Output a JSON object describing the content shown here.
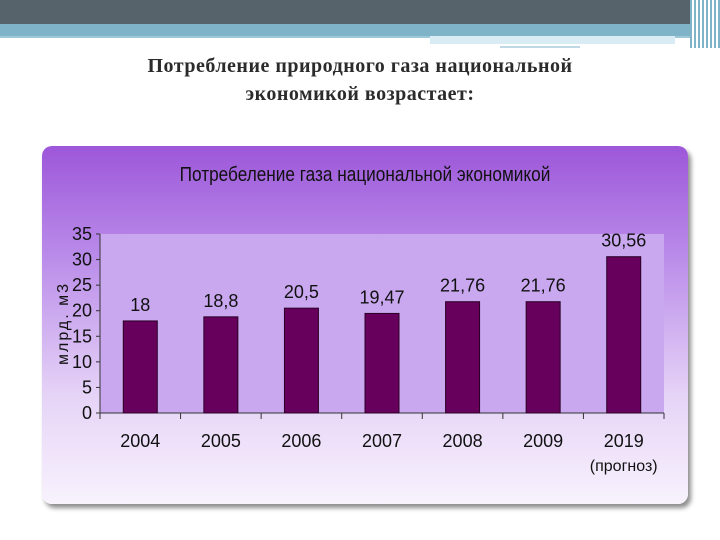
{
  "slide": {
    "title_line1": "Потребление природного газа национальной",
    "title_line2": "экономикой возрастает:"
  },
  "colors": {
    "banner_dark": "#56636b",
    "banner_teal": "#7fb3c8",
    "bar": "#66005c",
    "plot_bg": "#c9a8f0"
  },
  "chart_data": {
    "type": "bar",
    "title": "Потребеление газа национальной экономикой",
    "ylabel": "млрд. м3",
    "xlabel": "",
    "categories": [
      "2004",
      "2005",
      "2006",
      "2007",
      "2008",
      "2009",
      "2019"
    ],
    "sublabels": [
      "",
      "",
      "",
      "",
      "",
      "",
      "(прогноз)"
    ],
    "values": [
      18,
      18.8,
      20.5,
      19.47,
      21.76,
      21.76,
      30.56
    ],
    "value_labels": [
      "18",
      "18,8",
      "20,5",
      "19,47",
      "21,76",
      "21,76",
      "30,56"
    ],
    "ylim": [
      0,
      35
    ],
    "yticks": [
      0,
      5,
      10,
      15,
      20,
      25,
      30,
      35
    ],
    "grid": false,
    "legend": "none"
  }
}
